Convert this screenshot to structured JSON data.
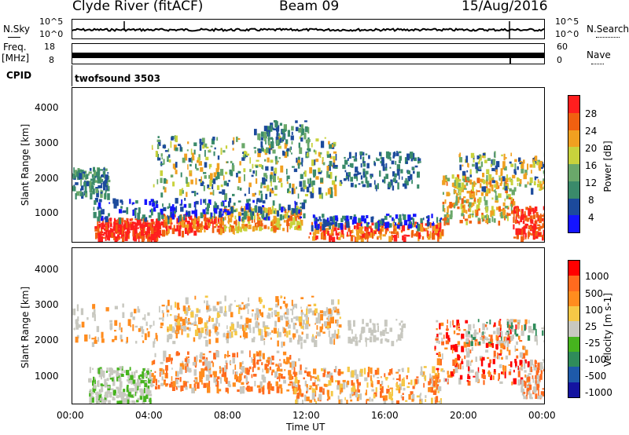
{
  "header": {
    "station": "Clyde River (fitACF)",
    "beam": "Beam 09",
    "date": "15/Aug/2016"
  },
  "top_panel": {
    "left_label": "N.Sky",
    "left_ticks": [
      "10^5",
      "10^0"
    ],
    "right_ticks": [
      "10^5",
      "10^0"
    ],
    "right_label": "N.Search"
  },
  "freq_panel": {
    "left_label_1": "Freq.",
    "left_label_2": "[MHz]",
    "left_ticks": [
      "18",
      "8"
    ],
    "right_ticks": [
      "60",
      "0"
    ],
    "right_label": "Nave"
  },
  "cpid": {
    "label": "CPID",
    "program": "twofsound 3503"
  },
  "colors": {
    "power_scale": [
      "#1414ff",
      "#1c4a9c",
      "#3a8a6a",
      "#6aa86a",
      "#c8d23c",
      "#f0a020",
      "#f06010",
      "#ff1e1e"
    ],
    "velocity_scale": [
      "#ff0000",
      "#ff6a1e",
      "#ff8c1e",
      "#f5c846",
      "#c8c8c0",
      "#46b41e",
      "#2f8c5a",
      "#1e5aaa",
      "#1414a0"
    ]
  },
  "chart_data": [
    {
      "type": "heatmap",
      "name": "power",
      "ylabel": "Slant Range [km]",
      "yticks": [
        "1000",
        "2000",
        "3000",
        "4000"
      ],
      "ylim": [
        180,
        4600
      ],
      "xlim": [
        0,
        24
      ],
      "colorbar_label": "Power [dB]",
      "colorbar_ticks": [
        "4",
        "8",
        "12",
        "16",
        "20",
        "24",
        "28"
      ],
      "grid": false
    },
    {
      "type": "heatmap",
      "name": "velocity",
      "ylabel": "Slant Range [km]",
      "yticks": [
        "1000",
        "2000",
        "3000",
        "4000"
      ],
      "ylim": [
        180,
        4600
      ],
      "xlim": [
        0,
        24
      ],
      "colorbar_label": "Velocity [m s-1]",
      "colorbar_ticks": [
        "1000",
        "500",
        "100",
        "25",
        "-25",
        "-100",
        "-500",
        "-1000"
      ],
      "grid": false
    }
  ],
  "xaxis": {
    "ticks": [
      "00:00",
      "04:00",
      "08:00",
      "12:00",
      "16:00",
      "20:00",
      "00:00"
    ],
    "label": "Time UT"
  }
}
